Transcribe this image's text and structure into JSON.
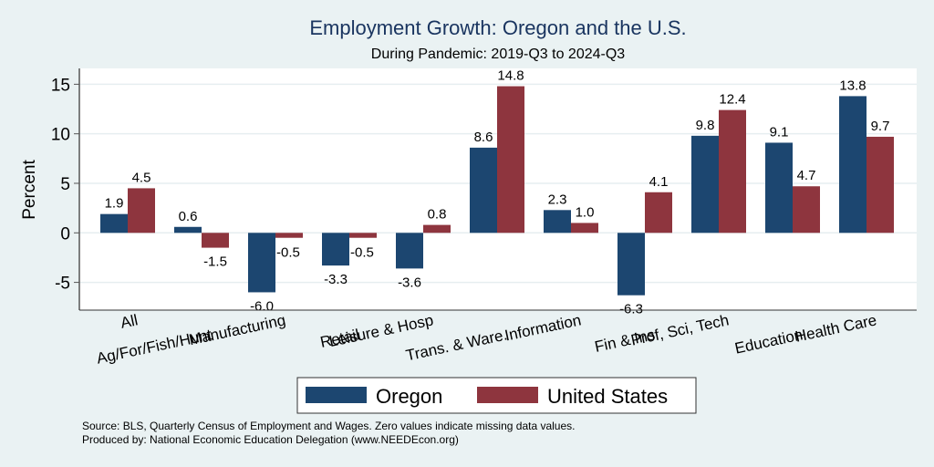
{
  "chart_data": {
    "type": "bar",
    "title": "Employment Growth: Oregon and the U.S.",
    "subtitle": "During Pandemic: 2019-Q3 to 2024-Q3",
    "xlabel": "",
    "ylabel": "Percent",
    "ylim": [
      -7.8,
      16.6
    ],
    "yticks": [
      -5,
      0,
      5,
      10,
      15
    ],
    "ytick_labels": [
      "-5",
      "0",
      "5",
      "10",
      "15"
    ],
    "grid": true,
    "categories": [
      "All",
      "Ag/For/Fish/Hunt",
      "Manufacturing",
      "Retail",
      "Leisure & Hosp",
      "Trans. & Ware.",
      "Information",
      "Fin & Ins",
      "Prof, Sci, Tech",
      "Education",
      "Health Care"
    ],
    "series": [
      {
        "name": "Oregon",
        "color": "#1c4670",
        "values": [
          1.9,
          0.6,
          -6.0,
          -3.3,
          -3.6,
          8.6,
          2.3,
          -6.3,
          9.8,
          9.1,
          13.8
        ]
      },
      {
        "name": "United States",
        "color": "#8e353e",
        "values": [
          4.5,
          -1.5,
          -0.5,
          -0.5,
          0.8,
          14.8,
          1.0,
          4.1,
          12.4,
          4.7,
          9.7
        ]
      }
    ],
    "data_labels": [
      [
        "1.9",
        "0.6",
        "-6.0",
        "-3.3",
        "-3.6",
        "8.6",
        "2.3",
        "-6.3",
        "9.8",
        "9.1",
        "13.8"
      ],
      [
        "4.5",
        "-1.5",
        "-0.5",
        "-0.5",
        "0.8",
        "14.8",
        "1.0",
        "4.1",
        "12.4",
        "4.7",
        "9.7"
      ]
    ],
    "legend": {
      "position": "bottom",
      "entries": [
        "Oregon",
        "United States"
      ]
    }
  },
  "footer": {
    "source": "Source: BLS, Quarterly Census of Employment and Wages. Zero values indicate missing data values.",
    "produced": "Produced by: National Economic Education Delegation (www.NEEDEcon.org)"
  }
}
